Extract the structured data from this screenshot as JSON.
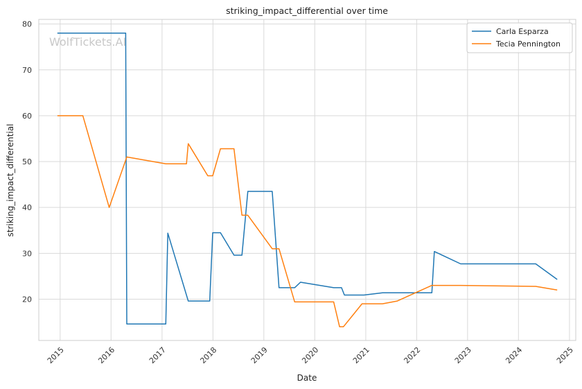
{
  "chart_data": {
    "type": "line",
    "title": "striking_impact_differential over time",
    "xlabel": "Date",
    "ylabel": "striking_impact_differential",
    "watermark": "WolfTickets.AI",
    "x_range": [
      "2014-08-01",
      "2025-02-15"
    ],
    "ylim": [
      11,
      81
    ],
    "x_ticks": [
      "2015",
      "2016",
      "2017",
      "2018",
      "2019",
      "2020",
      "2021",
      "2022",
      "2023",
      "2024",
      "2025"
    ],
    "y_ticks": [
      20,
      30,
      40,
      50,
      60,
      70,
      80
    ],
    "grid": true,
    "legend_position": "top-right",
    "series": [
      {
        "name": "Carla Esparza",
        "color": "#1f77b4",
        "points": [
          [
            "2014-12-12",
            78.0
          ],
          [
            "2016-04-15",
            78.0
          ],
          [
            "2016-04-23",
            14.6
          ],
          [
            "2017-01-28",
            14.6
          ],
          [
            "2017-02-11",
            34.4
          ],
          [
            "2017-07-08",
            19.6
          ],
          [
            "2017-12-09",
            19.6
          ],
          [
            "2017-12-30",
            34.5
          ],
          [
            "2018-02-24",
            34.5
          ],
          [
            "2018-06-01",
            29.6
          ],
          [
            "2018-07-28",
            29.6
          ],
          [
            "2018-09-08",
            43.5
          ],
          [
            "2019-03-02",
            43.5
          ],
          [
            "2019-04-20",
            22.5
          ],
          [
            "2019-08-10",
            22.5
          ],
          [
            "2019-09-21",
            23.7
          ],
          [
            "2020-05-16",
            22.5
          ],
          [
            "2020-07-11",
            22.5
          ],
          [
            "2020-08-01",
            20.9
          ],
          [
            "2020-12-19",
            20.9
          ],
          [
            "2021-05-01",
            21.4
          ],
          [
            "2022-04-20",
            21.4
          ],
          [
            "2022-05-08",
            30.4
          ],
          [
            "2022-11-12",
            27.7
          ],
          [
            "2024-05-04",
            27.7
          ],
          [
            "2024-10-05",
            24.3
          ]
        ]
      },
      {
        "name": "Tecia Pennington",
        "color": "#ff7f0e",
        "points": [
          [
            "2014-12-12",
            60.0
          ],
          [
            "2015-06-13",
            60.0
          ],
          [
            "2015-12-19",
            40.0
          ],
          [
            "2016-04-23",
            51.0
          ],
          [
            "2017-01-28",
            49.5
          ],
          [
            "2017-06-25",
            49.5
          ],
          [
            "2017-07-08",
            53.9
          ],
          [
            "2017-11-25",
            46.9
          ],
          [
            "2017-12-30",
            46.9
          ],
          [
            "2018-02-24",
            52.8
          ],
          [
            "2018-06-01",
            52.8
          ],
          [
            "2018-07-28",
            38.3
          ],
          [
            "2018-09-08",
            38.3
          ],
          [
            "2019-03-02",
            31.0
          ],
          [
            "2019-04-20",
            31.0
          ],
          [
            "2019-08-10",
            19.4
          ],
          [
            "2020-05-16",
            19.4
          ],
          [
            "2020-06-27",
            14.0
          ],
          [
            "2020-07-25",
            14.0
          ],
          [
            "2020-12-05",
            19.0
          ],
          [
            "2021-05-01",
            19.0
          ],
          [
            "2021-08-15",
            19.6
          ],
          [
            "2022-04-20",
            23.0
          ],
          [
            "2022-11-12",
            23.0
          ],
          [
            "2024-05-04",
            22.8
          ],
          [
            "2024-10-05",
            22.0
          ]
        ]
      }
    ]
  }
}
